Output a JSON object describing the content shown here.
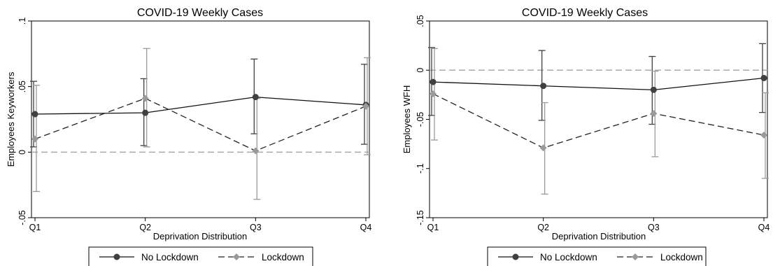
{
  "chart_data": [
    {
      "type": "line",
      "title": "COVID-19 Weekly Cases",
      "xlabel": "Deprivation Distribution",
      "ylabel": "Employees Keyworkers",
      "categories": [
        "Q1",
        "Q2",
        "Q3",
        "Q4"
      ],
      "ylim": [
        -0.05,
        0.1
      ],
      "yticks": [
        {
          "value": -0.05,
          "label": "-.05"
        },
        {
          "value": 0,
          "label": "0"
        },
        {
          "value": 0.05,
          "label": ".05"
        },
        {
          "value": 0.1,
          "label": ".1"
        }
      ],
      "reference_line": 0,
      "grid": false,
      "legend_position": "bottom",
      "series": [
        {
          "name": "No Lockdown",
          "color": "#404040",
          "marker": "circle",
          "dash": "solid",
          "values": [
            0.029,
            0.03,
            0.042,
            0.036
          ],
          "ci_low": [
            0.004,
            0.005,
            0.014,
            0.006
          ],
          "ci_high": [
            0.054,
            0.056,
            0.071,
            0.067
          ]
        },
        {
          "name": "Lockdown",
          "color": "#9a9a9a",
          "marker": "diamond",
          "dash": "dashed",
          "values": [
            0.01,
            0.041,
            0.001,
            0.035
          ],
          "ci_low": [
            -0.03,
            0.004,
            -0.036,
            -0.002
          ],
          "ci_high": [
            0.051,
            0.079,
            0.041,
            0.072
          ]
        }
      ]
    },
    {
      "type": "line",
      "title": "COVID-19 Weekly Cases",
      "xlabel": "Deprivation Distribution",
      "ylabel": "Employees WFH",
      "categories": [
        "Q1",
        "Q2",
        "Q3",
        "Q4"
      ],
      "ylim": [
        -0.15,
        0.05
      ],
      "yticks": [
        {
          "value": -0.15,
          "label": "-.15"
        },
        {
          "value": -0.1,
          "label": "-.1"
        },
        {
          "value": -0.05,
          "label": "-.05"
        },
        {
          "value": 0,
          "label": "0"
        },
        {
          "value": 0.05,
          "label": ".05"
        }
      ],
      "reference_line": 0,
      "grid": false,
      "legend_position": "bottom",
      "series": [
        {
          "name": "No Lockdown",
          "color": "#404040",
          "marker": "circle",
          "dash": "solid",
          "values": [
            -0.012,
            -0.016,
            -0.02,
            -0.008
          ],
          "ci_low": [
            -0.046,
            -0.051,
            -0.055,
            -0.043
          ],
          "ci_high": [
            0.023,
            0.02,
            0.014,
            0.027
          ]
        },
        {
          "name": "Lockdown",
          "color": "#9a9a9a",
          "marker": "diamond",
          "dash": "dashed",
          "values": [
            -0.024,
            -0.079,
            -0.044,
            -0.066
          ],
          "ci_low": [
            -0.071,
            -0.126,
            -0.088,
            -0.11
          ],
          "ci_high": [
            0.022,
            -0.033,
            -0.001,
            -0.023
          ]
        }
      ]
    }
  ]
}
